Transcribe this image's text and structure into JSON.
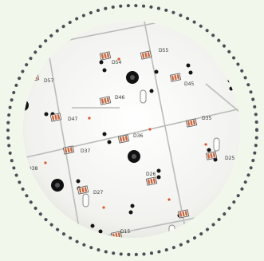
{
  "colors": {
    "background": "#f2f7ec",
    "board": "#f4f4f2",
    "dots": "#4a4f55",
    "led_pad": "#c8663c",
    "marker": "#e0552a",
    "hole": "#141414"
  },
  "components": [
    {
      "label": "D54"
    },
    {
      "label": "D55"
    },
    {
      "label": "D57"
    },
    {
      "label": "D46"
    },
    {
      "label": "D45"
    },
    {
      "label": "D47"
    },
    {
      "label": "D36"
    },
    {
      "label": "D35"
    },
    {
      "label": "D37"
    },
    {
      "label": "D26"
    },
    {
      "label": "D25"
    },
    {
      "label": "D27"
    },
    {
      "label": "D28"
    },
    {
      "label": "D14"
    },
    {
      "label": "D15"
    },
    {
      "label": "D38"
    }
  ]
}
